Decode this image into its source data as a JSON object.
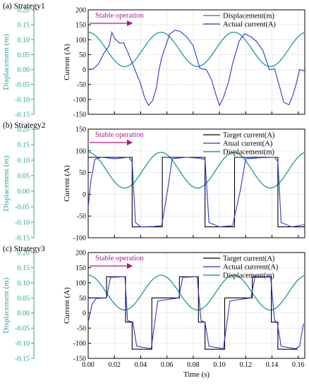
{
  "colors": {
    "displacement": "#2aa198",
    "actual_current": "#2b35d8",
    "target_current": "#000000",
    "annotation": "#b0168c",
    "grid": "#e0e0e0"
  },
  "shared_axes": {
    "x_title": "Time (s)",
    "x_ticks": [
      "0.00",
      "0.02",
      "0.04",
      "0.06",
      "0.08",
      "0.10",
      "0.12",
      "0.14",
      "0.16"
    ],
    "x_range": [
      0,
      0.165
    ],
    "left_title": "Displacement (m)",
    "left_ticks": [
      "-0.15",
      "-0.10",
      "-0.05",
      "0.00",
      "0.05",
      "0.10",
      "0.15",
      "0.20"
    ],
    "left_range": [
      -0.15,
      0.2
    ],
    "right_title": "Current (A)"
  },
  "chart_data": [
    {
      "type": "line",
      "label": "(a) Strategy1",
      "annotation": "Stable operation",
      "current_range": [
        -150,
        200
      ],
      "current_ticks": [
        "-150",
        "-100",
        "-50",
        "0",
        "50",
        "100",
        "150",
        "200"
      ],
      "legend": {
        "displacement": "Displacement(m)",
        "actual": "Actual current(A)"
      },
      "series": [
        {
          "name": "Displacement(m)",
          "axis": "left",
          "kind": "sine",
          "center": 0.0675,
          "amplitude": 0.0575,
          "period": 0.0555,
          "peak_time": 0.0
        },
        {
          "name": "Actual current(A)",
          "axis": "right",
          "points": [
            [
              0.0,
              0
            ],
            [
              0.004,
              2
            ],
            [
              0.008,
              20
            ],
            [
              0.012,
              55
            ],
            [
              0.016,
              80
            ],
            [
              0.018,
              125
            ],
            [
              0.02,
              105
            ],
            [
              0.024,
              88
            ],
            [
              0.027,
              90
            ],
            [
              0.03,
              60
            ],
            [
              0.033,
              28
            ],
            [
              0.036,
              -5
            ],
            [
              0.04,
              -48
            ],
            [
              0.043,
              -95
            ],
            [
              0.046,
              -120
            ],
            [
              0.049,
              -105
            ],
            [
              0.052,
              -60
            ],
            [
              0.054,
              0
            ],
            [
              0.056,
              40
            ],
            [
              0.062,
              118
            ],
            [
              0.066,
              132
            ],
            [
              0.07,
              128
            ],
            [
              0.075,
              110
            ],
            [
              0.08,
              80
            ],
            [
              0.085,
              5
            ],
            [
              0.087,
              2
            ],
            [
              0.09,
              0
            ],
            [
              0.094,
              -35
            ],
            [
              0.097,
              -80
            ],
            [
              0.1,
              -120
            ],
            [
              0.103,
              -95
            ],
            [
              0.107,
              -40
            ],
            [
              0.11,
              20
            ],
            [
              0.115,
              95
            ],
            [
              0.119,
              120
            ],
            [
              0.124,
              110
            ],
            [
              0.128,
              95
            ],
            [
              0.133,
              65
            ],
            [
              0.138,
              0
            ],
            [
              0.142,
              2
            ],
            [
              0.146,
              -60
            ],
            [
              0.149,
              -110
            ],
            [
              0.153,
              -118
            ],
            [
              0.156,
              -85
            ],
            [
              0.159,
              -40
            ],
            [
              0.161,
              0
            ],
            [
              0.165,
              -5
            ]
          ]
        }
      ]
    },
    {
      "type": "line",
      "label": "(b) Strategy2",
      "annotation": "Stable operation",
      "current_range": [
        -100,
        150
      ],
      "current_ticks": [
        "-100",
        "-50",
        "0",
        "50",
        "100",
        "150"
      ],
      "legend": {
        "target": "Target current(A)",
        "actual": "Atual current(A)",
        "displacement": "Displacement(m)"
      },
      "series": [
        {
          "name": "Displacement(m)",
          "axis": "left",
          "kind": "sine",
          "center": 0.0675,
          "amplitude": 0.0575,
          "period": 0.0555,
          "peak_time": 0.0
        },
        {
          "name": "Target current(A)",
          "axis": "right",
          "points": [
            [
              0.0,
              85
            ],
            [
              0.0335,
              85
            ],
            [
              0.0335,
              -75
            ],
            [
              0.0565,
              -75
            ],
            [
              0.0565,
              85
            ],
            [
              0.089,
              85
            ],
            [
              0.089,
              -75
            ],
            [
              0.1115,
              -75
            ],
            [
              0.1115,
              85
            ],
            [
              0.1445,
              85
            ],
            [
              0.1445,
              -75
            ],
            [
              0.165,
              -75
            ]
          ]
        },
        {
          "name": "Atual current(A)",
          "axis": "right",
          "points": [
            [
              0.0,
              -30
            ],
            [
              0.002,
              30
            ],
            [
              0.005,
              80
            ],
            [
              0.01,
              85
            ],
            [
              0.02,
              82
            ],
            [
              0.031,
              85
            ],
            [
              0.0335,
              75
            ],
            [
              0.036,
              -65
            ],
            [
              0.04,
              -75
            ],
            [
              0.05,
              -74
            ],
            [
              0.056,
              -72
            ],
            [
              0.0605,
              10
            ],
            [
              0.064,
              82
            ],
            [
              0.075,
              85
            ],
            [
              0.085,
              83
            ],
            [
              0.089,
              80
            ],
            [
              0.092,
              -65
            ],
            [
              0.1,
              -75
            ],
            [
              0.11,
              -72
            ],
            [
              0.116,
              10
            ],
            [
              0.12,
              82
            ],
            [
              0.13,
              84
            ],
            [
              0.142,
              85
            ],
            [
              0.1445,
              75
            ],
            [
              0.147,
              -65
            ],
            [
              0.155,
              -75
            ],
            [
              0.165,
              -70
            ]
          ]
        }
      ]
    },
    {
      "type": "line",
      "label": "(c) Strategy3",
      "annotation": "Stable operation",
      "current_range": [
        -150,
        200
      ],
      "current_ticks": [
        "-150",
        "-100",
        "-50",
        "0",
        "50",
        "100",
        "150",
        "200"
      ],
      "legend": {
        "target": "Target current(A)",
        "actual": "Actual currrent(A)",
        "displacement": "Displacement(m)"
      },
      "series": [
        {
          "name": "Displacement(m)",
          "axis": "left",
          "kind": "sine",
          "center": 0.0675,
          "amplitude": 0.0575,
          "period": 0.0555,
          "peak_time": 0.0
        },
        {
          "name": "Target current(A)",
          "axis": "right",
          "points": [
            [
              0.0,
              50
            ],
            [
              0.014,
              50
            ],
            [
              0.014,
              120
            ],
            [
              0.0285,
              120
            ],
            [
              0.0285,
              -30
            ],
            [
              0.0335,
              -30
            ],
            [
              0.0335,
              -120
            ],
            [
              0.0485,
              -120
            ],
            [
              0.0485,
              50
            ],
            [
              0.0695,
              50
            ],
            [
              0.0695,
              120
            ],
            [
              0.084,
              120
            ],
            [
              0.084,
              -30
            ],
            [
              0.089,
              -30
            ],
            [
              0.089,
              -120
            ],
            [
              0.104,
              -120
            ],
            [
              0.104,
              50
            ],
            [
              0.125,
              50
            ],
            [
              0.125,
              120
            ],
            [
              0.1395,
              120
            ],
            [
              0.1395,
              -30
            ],
            [
              0.1445,
              -30
            ],
            [
              0.1445,
              -120
            ],
            [
              0.1595,
              -120
            ]
          ]
        },
        {
          "name": "Actual currrent(A)",
          "axis": "right",
          "points": [
            [
              0.0,
              -30
            ],
            [
              0.003,
              30
            ],
            [
              0.006,
              48
            ],
            [
              0.014,
              50
            ],
            [
              0.017,
              118
            ],
            [
              0.028,
              120
            ],
            [
              0.03,
              -25
            ],
            [
              0.034,
              -30
            ],
            [
              0.037,
              -110
            ],
            [
              0.048,
              -118
            ],
            [
              0.053,
              40
            ],
            [
              0.069,
              50
            ],
            [
              0.072,
              118
            ],
            [
              0.083,
              120
            ],
            [
              0.086,
              -25
            ],
            [
              0.089,
              -30
            ],
            [
              0.092,
              -110
            ],
            [
              0.103,
              -118
            ],
            [
              0.108,
              40
            ],
            [
              0.124,
              50
            ],
            [
              0.127,
              118
            ],
            [
              0.139,
              120
            ],
            [
              0.142,
              -25
            ],
            [
              0.144,
              -30
            ],
            [
              0.147,
              -110
            ],
            [
              0.158,
              -118
            ],
            [
              0.161,
              -110
            ],
            [
              0.164,
              -35
            ]
          ]
        }
      ]
    }
  ]
}
